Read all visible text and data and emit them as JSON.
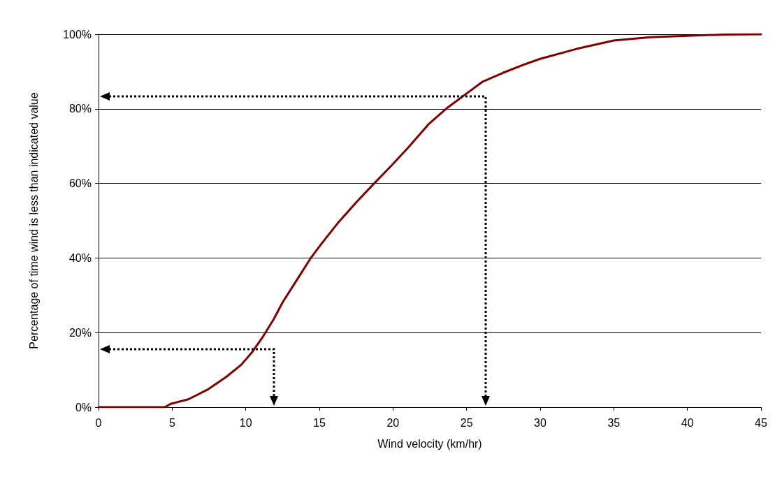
{
  "chart_data": {
    "type": "line",
    "xlabel": "Wind velocity (km/hr)",
    "ylabel": "Percentage of time wind is less than indicated value",
    "xlim": [
      0,
      45
    ],
    "xticks": [
      0,
      5,
      10,
      15,
      20,
      25,
      30,
      35,
      40,
      45
    ],
    "ylim": [
      0,
      100
    ],
    "yticks": [
      {
        "value": 0,
        "label": "0%"
      },
      {
        "value": 20,
        "label": "20%"
      },
      {
        "value": 40,
        "label": "40%"
      },
      {
        "value": 60,
        "label": "60%"
      },
      {
        "value": 80,
        "label": "80%"
      },
      {
        "value": 100,
        "label": "100%"
      }
    ],
    "grid": "y",
    "marker": "none",
    "line_style": "solid",
    "series": [
      {
        "color": "#800000",
        "x": [
          0,
          1,
          4.5,
          4.9,
          6.1,
          7.4,
          8.7,
          9.7,
          10.4,
          11.1,
          11.9,
          12.5,
          13.5,
          14.4,
          15.1,
          16.3,
          17.5,
          18.7,
          19.9,
          21.1,
          22.4,
          23.7,
          25,
          26.1,
          27.5,
          29,
          30,
          32.5,
          35,
          37.5,
          40,
          42.5,
          45
        ],
        "values": [
          0,
          0,
          0,
          0.9,
          2.1,
          4.7,
          8.2,
          11.4,
          14.6,
          18.5,
          23.6,
          28.1,
          34.3,
          39.9,
          43.6,
          49.6,
          54.9,
          59.9,
          64.8,
          69.9,
          75.8,
          80.3,
          84.1,
          87.3,
          89.7,
          92,
          93.4,
          96.1,
          98.3,
          99.2,
          99.6,
          99.9,
          100
        ]
      }
    ]
  }
}
